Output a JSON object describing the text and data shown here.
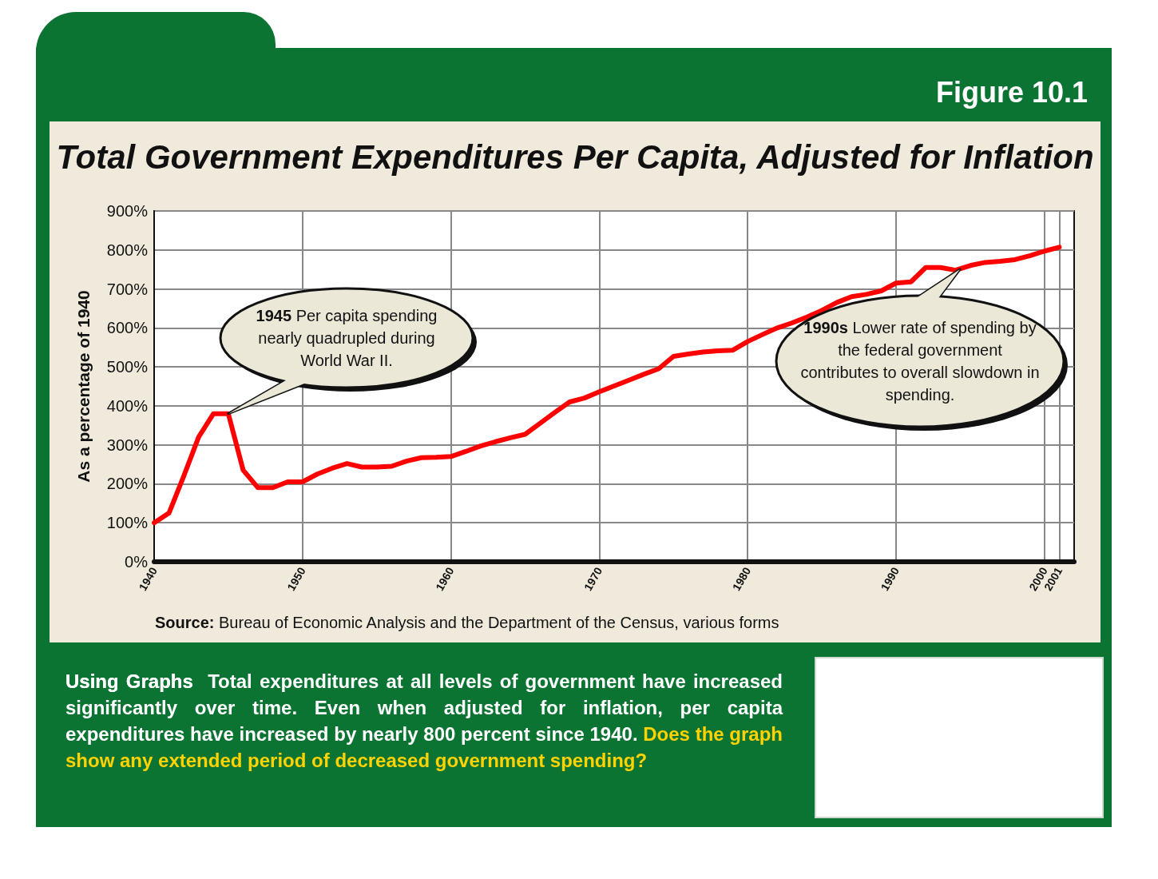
{
  "chart_data": {
    "type": "line",
    "title": "Total Government Expenditures Per Capita, Adjusted for Inflation",
    "ylabel": "As a percentage of 1940",
    "x": [
      1940,
      1941,
      1942,
      1943,
      1944,
      1945,
      1946,
      1947,
      1948,
      1949,
      1950,
      1951,
      1952,
      1953,
      1954,
      1955,
      1956,
      1957,
      1958,
      1959,
      1960,
      1961,
      1962,
      1963,
      1964,
      1965,
      1966,
      1967,
      1968,
      1969,
      1970,
      1971,
      1972,
      1973,
      1974,
      1975,
      1976,
      1977,
      1978,
      1979,
      1980,
      1981,
      1982,
      1983,
      1984,
      1985,
      1986,
      1987,
      1988,
      1989,
      1990,
      1991,
      1992,
      1993,
      1994,
      1995,
      1996,
      1997,
      1998,
      1999,
      2000,
      2001
    ],
    "series": [
      {
        "color": "#ff0000",
        "values": [
          100,
          125,
          220,
          320,
          380,
          380,
          235,
          190,
          190,
          205,
          205,
          225,
          240,
          252,
          243,
          243,
          245,
          258,
          267,
          268,
          270,
          283,
          297,
          308,
          318,
          327,
          355,
          383,
          410,
          420,
          436,
          451,
          466,
          481,
          495,
          527,
          533,
          538,
          541,
          543,
          565,
          583,
          600,
          613,
          628,
          645,
          665,
          680,
          686,
          695,
          715,
          718,
          755,
          755,
          748,
          760,
          768,
          771,
          775,
          785,
          797,
          807
        ]
      }
    ],
    "xlim": [
      1940,
      2002
    ],
    "xticks": [
      1940,
      1950,
      1960,
      1970,
      1980,
      1990,
      2000,
      2001
    ],
    "ylim": [
      0,
      900
    ],
    "yticks": [
      {
        "value": 0,
        "label": "0%"
      },
      {
        "value": 100,
        "label": "100%"
      },
      {
        "value": 200,
        "label": "200%"
      },
      {
        "value": 300,
        "label": "300%"
      },
      {
        "value": 400,
        "label": "400%"
      },
      {
        "value": 500,
        "label": "500%"
      },
      {
        "value": 600,
        "label": "600%"
      },
      {
        "value": 700,
        "label": "700%"
      },
      {
        "value": 800,
        "label": "800%"
      },
      {
        "value": 900,
        "label": "900%"
      }
    ],
    "grid": true,
    "marker": "none",
    "line_style": "solid",
    "annotations": [
      {
        "text": "1945 Per capita spending nearly quadrupled during World War II.",
        "x": 1945,
        "y": 380
      },
      "1990s Lower rate of spending by the federal government contributes to overall slowdown in spending.",
      "Figure 10.1",
      "Source: Bureau of Economic Analysis and the Department of the Census, various forms",
      "Using Graphs",
      "Total expenditures at all levels of government have increased significantly over time. Even when adjusted for inflation, per capita expenditures have increased by nearly 800 percent since 1940.",
      "Does the graph show any extended period of decreased government spending?"
    ]
  }
}
